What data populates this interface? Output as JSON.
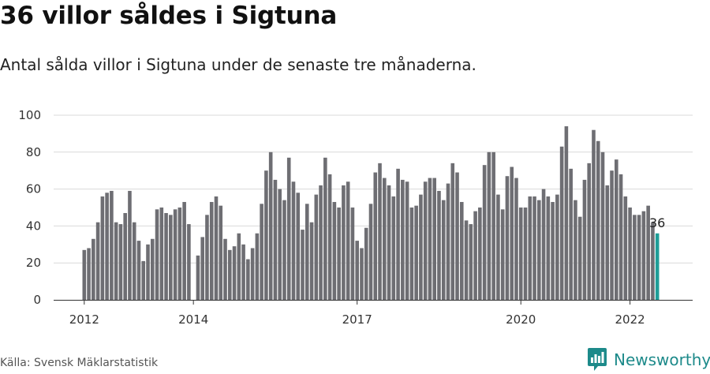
{
  "chart_data": {
    "type": "bar",
    "title": "36 villor såldes i Sigtuna",
    "subtitle": "Antal sålda villor i Sigtuna under de senaste tre månaderna.",
    "xlabel": "",
    "ylabel": "",
    "ylim": [
      0,
      100
    ],
    "yticks": [
      0,
      20,
      40,
      60,
      80,
      100
    ],
    "x_start": "2012-01",
    "xtick_labels": [
      {
        "label": "2012",
        "index": 0
      },
      {
        "label": "2014",
        "index": 24
      },
      {
        "label": "2017",
        "index": 60
      },
      {
        "label": "2020",
        "index": 96
      },
      {
        "label": "2022",
        "index": 120
      }
    ],
    "values": [
      27,
      28,
      33,
      42,
      56,
      58,
      59,
      42,
      41,
      47,
      59,
      42,
      32,
      21,
      30,
      33,
      49,
      50,
      47,
      46,
      49,
      50,
      53,
      41,
      0,
      24,
      34,
      46,
      53,
      56,
      51,
      33,
      27,
      29,
      36,
      30,
      22,
      28,
      36,
      52,
      70,
      80,
      65,
      60,
      54,
      77,
      64,
      58,
      38,
      52,
      42,
      57,
      62,
      77,
      68,
      53,
      50,
      62,
      64,
      50,
      32,
      28,
      39,
      52,
      69,
      74,
      66,
      62,
      56,
      71,
      65,
      64,
      50,
      51,
      57,
      64,
      66,
      66,
      59,
      54,
      63,
      74,
      69,
      53,
      43,
      41,
      48,
      50,
      73,
      80,
      80,
      57,
      49,
      67,
      72,
      66,
      50,
      50,
      56,
      56,
      54,
      60,
      56,
      53,
      57,
      83,
      94,
      71,
      54,
      45,
      65,
      74,
      92,
      86,
      80,
      62,
      70,
      76,
      68,
      56,
      50,
      46,
      46,
      48,
      51,
      42,
      36
    ],
    "highlight_index": 126,
    "value_label": "36",
    "bar_color": "#6e6e73",
    "highlight_color": "#1f9e98"
  },
  "source": "Källa: Svensk Mäklarstatistik",
  "brand": {
    "name": "Newsworthy",
    "icon": "newsworthy-logo-icon",
    "color": "#1d8a8a"
  }
}
